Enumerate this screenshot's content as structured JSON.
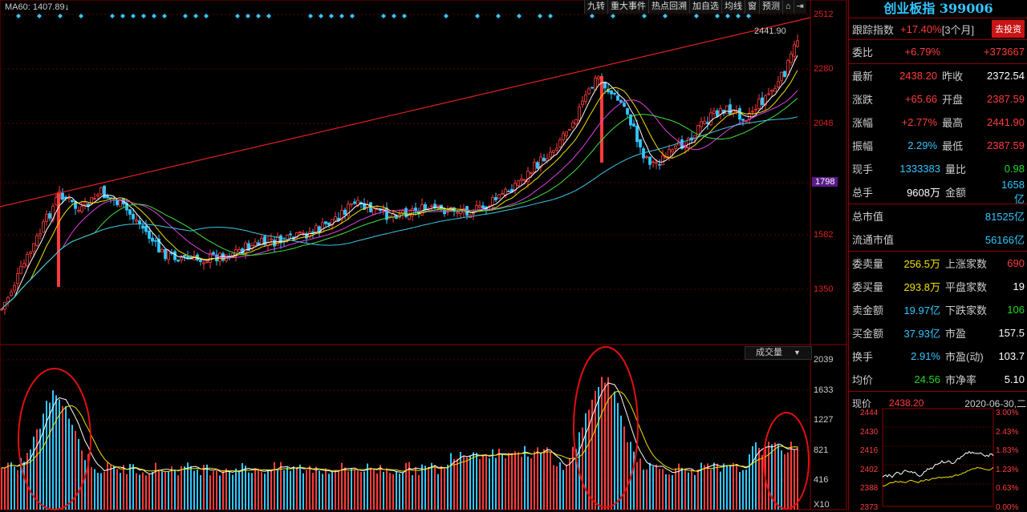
{
  "main": {
    "ma_label": "MA60: 1407.89",
    "toolbar": [
      "九转",
      "重大事件",
      "热点回溯",
      "加自选",
      "均线",
      "窗",
      "预测",
      "⌂",
      "⇥"
    ],
    "price_ticks": [
      "2512",
      "2280",
      "2048",
      "1798",
      "1582",
      "1350"
    ],
    "last_price_label": "2441.90",
    "volume_dropdown": "成交量",
    "volume_ticks": [
      "2039",
      "1633",
      "1227",
      "821",
      "416",
      "X10"
    ]
  },
  "colors": {
    "up": "#ff3c3c",
    "down": "#32c7ff",
    "ma5": "#ffffff",
    "ma10": "#f0e000",
    "ma20": "#e040e0",
    "ma30": "#40e040",
    "ma60": "#40c8e8",
    "trendline": "#e02020",
    "circle": "#e01010"
  },
  "side": {
    "title": "创业板指 399006",
    "track": {
      "label": "跟踪指数",
      "value": "+17.40%",
      "period": "[3个月]",
      "button": "去投资"
    },
    "weibi": {
      "label": "委比",
      "pct": "+6.79%",
      "diff": "+373667"
    },
    "quote": [
      {
        "l1": "最新",
        "v1": "2438.20",
        "l2": "昨收",
        "v2": "2372.54",
        "c1": "red",
        "c2": "white"
      },
      {
        "l1": "涨跌",
        "v1": "+65.66",
        "l2": "开盘",
        "v2": "2387.59",
        "c1": "red",
        "c2": "red"
      },
      {
        "l1": "涨幅",
        "v1": "+2.77%",
        "l2": "最高",
        "v2": "2441.90",
        "c1": "red",
        "c2": "red"
      },
      {
        "l1": "振幅",
        "v1": "2.29%",
        "l2": "最低",
        "v2": "2387.59",
        "c1": "cyan",
        "c2": "red"
      },
      {
        "l1": "现手",
        "v1": "1333383",
        "l2": "量比",
        "v2": "0.98",
        "c1": "cyan",
        "c2": "green"
      },
      {
        "l1": "总手",
        "v1": "9608万",
        "l2": "金额",
        "v2": "1658亿",
        "c1": "white",
        "c2": "cyan"
      }
    ],
    "market_cap": [
      {
        "label": "总市值",
        "value": "81525亿"
      },
      {
        "label": "流通市值",
        "value": "56166亿"
      }
    ],
    "stats": [
      {
        "l1": "委卖量",
        "v1": "256.5万",
        "l2": "上涨家数",
        "v2": "690",
        "c1": "yellow",
        "c2": "red"
      },
      {
        "l1": "委买量",
        "v1": "293.8万",
        "l2": "平盘家数",
        "v2": "19",
        "c1": "yellow",
        "c2": "white"
      },
      {
        "l1": "卖金额",
        "v1": "19.97亿",
        "l2": "下跌家数",
        "v2": "106",
        "c1": "cyan",
        "c2": "green"
      },
      {
        "l1": "买金额",
        "v1": "37.93亿",
        "l2": "市盈",
        "v2": "157.5",
        "c1": "cyan",
        "c2": "white"
      },
      {
        "l1": "换手",
        "v1": "2.91%",
        "l2": "市盈(动)",
        "v2": "103.7",
        "c1": "cyan",
        "c2": "white"
      },
      {
        "l1": "均价",
        "v1": "24.56",
        "l2": "市净率",
        "v2": "5.10",
        "c1": "green",
        "c2": "white"
      }
    ],
    "mini": {
      "label": "现价",
      "price": "2438.20",
      "date": "2020-06-30,二",
      "left_ticks": [
        "2444",
        "2430",
        "2416",
        "2402",
        "2388",
        "2373"
      ],
      "right_ticks": [
        "3.00%",
        "2.43%",
        "1.83%",
        "1.23%",
        "0.63%",
        "0.00%"
      ]
    }
  }
}
